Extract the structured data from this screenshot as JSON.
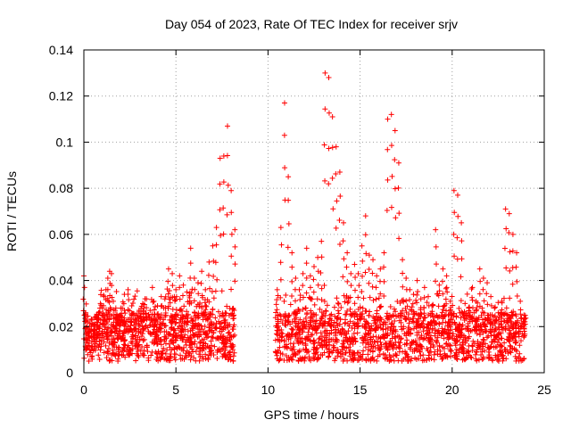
{
  "chart_data": {
    "type": "scatter",
    "title": "Day 054 of 2023, Rate Of TEC Index for receiver srjv",
    "xlabel": "GPS time / hours",
    "ylabel": "ROTI / TECUs",
    "xlim": [
      0,
      25
    ],
    "ylim": [
      0,
      0.14
    ],
    "xticks": [
      0,
      5,
      10,
      15,
      20,
      25
    ],
    "xtick_labels": [
      "0",
      "5",
      "10",
      "15",
      "20",
      "25"
    ],
    "yticks": [
      0,
      0.02,
      0.04,
      0.06,
      0.08,
      0.1,
      0.12,
      0.14
    ],
    "ytick_labels": [
      "0",
      "0.02",
      "0.04",
      "0.06",
      "0.08",
      "0.1",
      "0.12",
      "0.14"
    ],
    "grid": true,
    "marker": "+",
    "color": "#ff0000",
    "series": [
      {
        "name": "ROTI",
        "x": [
          0.0,
          0.1,
          0.2,
          0.3,
          0.4,
          0.5,
          0.6,
          0.7,
          0.8,
          0.9,
          1.0,
          1.1,
          1.2,
          1.3,
          1.4,
          1.5,
          1.6,
          1.7,
          1.8,
          1.9,
          2.0,
          2.2,
          2.4,
          2.6,
          2.8,
          3.0,
          3.2,
          3.4,
          3.6,
          3.8,
          4.0,
          4.2,
          4.4,
          4.6,
          4.8,
          5.0,
          5.2,
          5.4,
          5.6,
          5.8,
          6.0,
          6.2,
          6.4,
          6.6,
          6.8,
          7.0,
          7.2,
          7.4,
          7.6,
          7.8,
          8.0,
          8.2,
          10.5,
          10.7,
          10.9,
          11.1,
          11.3,
          11.5,
          11.7,
          11.9,
          12.1,
          12.3,
          12.5,
          12.7,
          12.9,
          13.1,
          13.3,
          13.5,
          13.7,
          13.9,
          14.1,
          14.3,
          14.5,
          14.7,
          14.9,
          15.1,
          15.3,
          15.5,
          15.7,
          15.9,
          16.1,
          16.3,
          16.5,
          16.7,
          16.9,
          17.1,
          17.3,
          17.5,
          17.7,
          17.9,
          18.1,
          18.3,
          18.5,
          18.7,
          18.9,
          19.1,
          19.3,
          19.5,
          19.7,
          19.9,
          20.1,
          20.3,
          20.5,
          20.7,
          20.9,
          21.1,
          21.3,
          21.5,
          21.7,
          21.9,
          22.1,
          22.3,
          22.5,
          22.7,
          22.9,
          23.1,
          23.3,
          23.5,
          23.7,
          23.9
        ],
        "y": [
          0.042,
          0.026,
          0.022,
          0.02,
          0.018,
          0.021,
          0.024,
          0.023,
          0.026,
          0.03,
          0.028,
          0.033,
          0.036,
          0.041,
          0.044,
          0.043,
          0.031,
          0.027,
          0.025,
          0.024,
          0.028,
          0.034,
          0.036,
          0.029,
          0.025,
          0.027,
          0.03,
          0.032,
          0.027,
          0.031,
          0.029,
          0.033,
          0.032,
          0.045,
          0.043,
          0.036,
          0.042,
          0.038,
          0.035,
          0.054,
          0.041,
          0.039,
          0.044,
          0.036,
          0.048,
          0.055,
          0.063,
          0.093,
          0.094,
          0.107,
          0.079,
          0.062,
          0.036,
          0.063,
          0.117,
          0.085,
          0.052,
          0.041,
          0.036,
          0.043,
          0.054,
          0.042,
          0.046,
          0.05,
          0.057,
          0.13,
          0.128,
          0.111,
          0.098,
          0.087,
          0.065,
          0.052,
          0.043,
          0.047,
          0.043,
          0.055,
          0.068,
          0.051,
          0.049,
          0.042,
          0.045,
          0.052,
          0.11,
          0.112,
          0.105,
          0.091,
          0.049,
          0.041,
          0.036,
          0.034,
          0.04,
          0.032,
          0.037,
          0.033,
          0.029,
          0.062,
          0.038,
          0.045,
          0.042,
          0.031,
          0.079,
          0.077,
          0.065,
          0.03,
          0.028,
          0.037,
          0.031,
          0.045,
          0.041,
          0.039,
          0.033,
          0.028,
          0.026,
          0.031,
          0.071,
          0.069,
          0.06,
          0.052,
          0.031,
          0.025
        ]
      }
    ],
    "background_band": {
      "min": 0.005,
      "max": 0.026
    },
    "data_gap_hours": [
      8.2,
      10.4
    ]
  }
}
